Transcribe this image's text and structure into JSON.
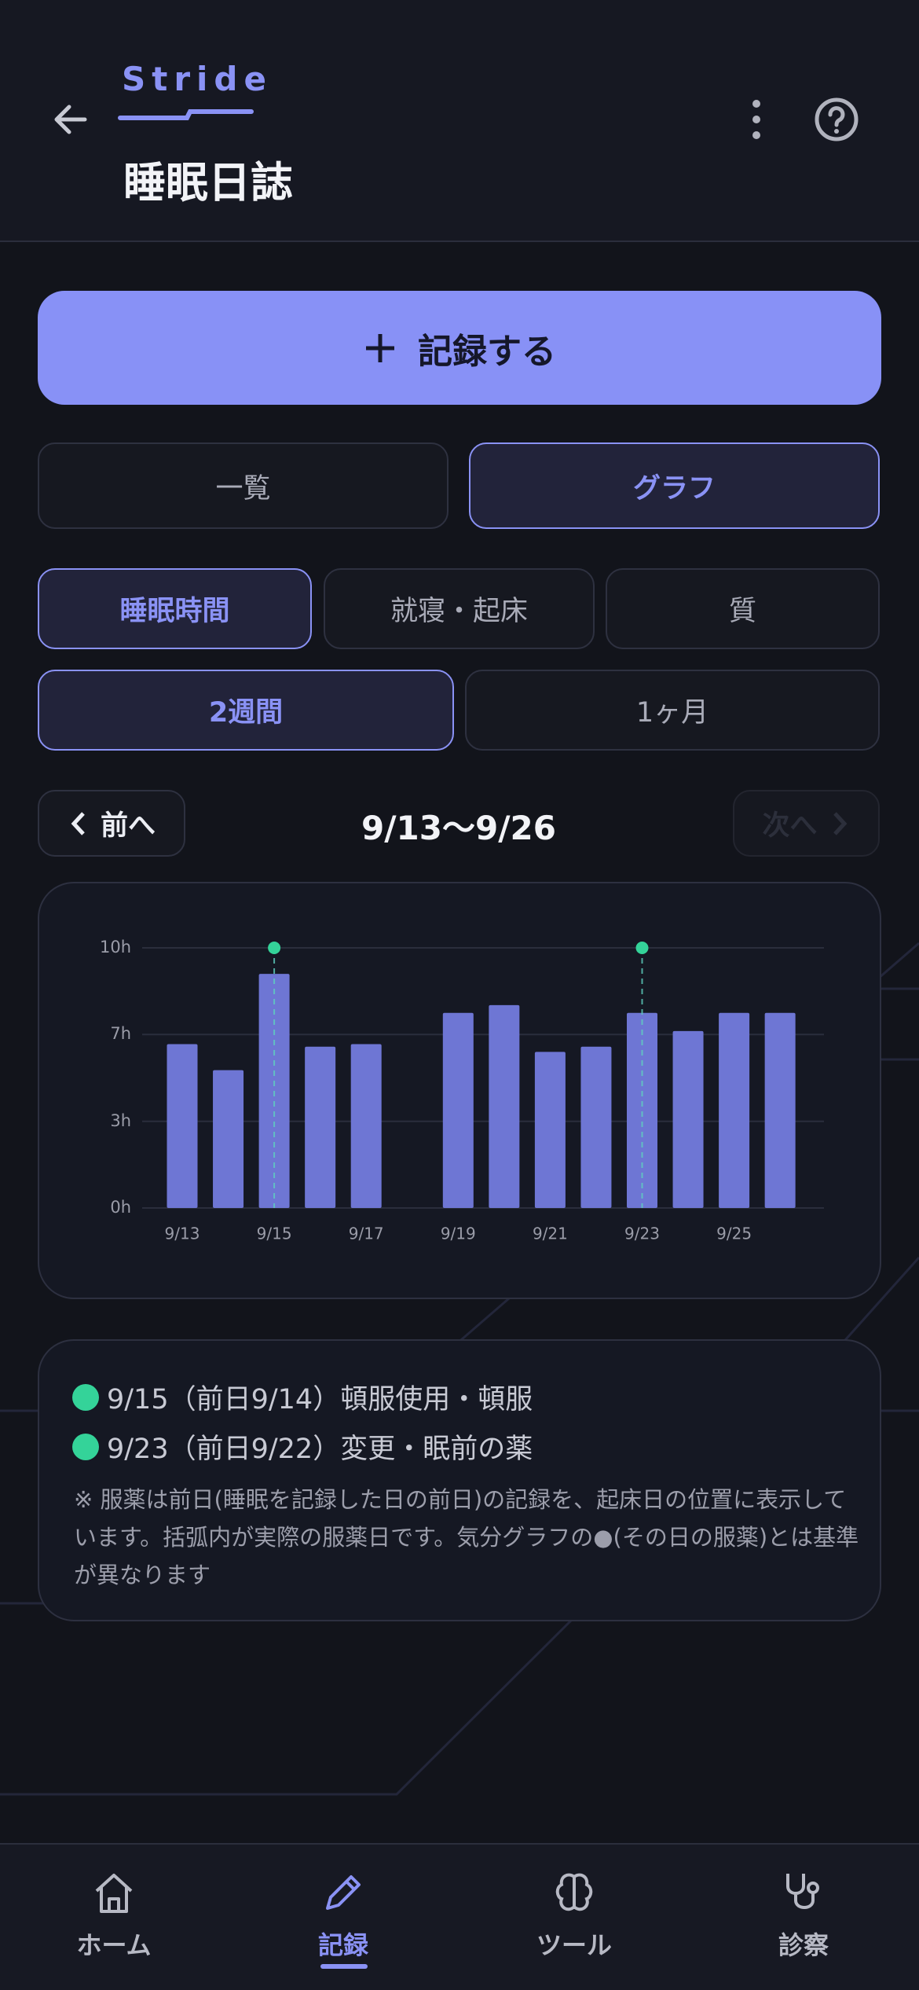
{
  "header": {
    "brand": "Stride",
    "title": "睡眠日誌"
  },
  "record_button": "記録する",
  "view_tabs": [
    "一覧",
    "グラフ"
  ],
  "metric_tabs": [
    "睡眠時間",
    "就寝・起床",
    "質"
  ],
  "range_tabs": [
    "2週間",
    "1ヶ月"
  ],
  "period": {
    "prev": "前へ",
    "label": "9/13〜9/26",
    "next": "次へ"
  },
  "chart_data": {
    "type": "bar",
    "categories": [
      "9/13",
      null,
      "9/15",
      null,
      "9/17",
      null,
      "9/19",
      null,
      "9/21",
      null,
      "9/23",
      null,
      "9/25",
      null
    ],
    "values": [
      6.3,
      5.3,
      9.0,
      6.2,
      6.3,
      null,
      7.5,
      7.8,
      6.0,
      6.2,
      7.5,
      6.8,
      7.5,
      7.5
    ],
    "color": "#6e76d4",
    "markers": {
      "color": "#34d399",
      "values": [
        null,
        null,
        10,
        null,
        null,
        null,
        null,
        null,
        null,
        null,
        10,
        null,
        null,
        null
      ]
    },
    "ylim": [
      0,
      10
    ],
    "yticks": [
      {
        "value": 0,
        "label": "0h"
      },
      {
        "value": 3.33,
        "label": "3h"
      },
      {
        "value": 6.67,
        "label": "7h"
      },
      {
        "value": 10,
        "label": "10h"
      }
    ],
    "grid": true
  },
  "notes": {
    "items": [
      "9/15（前日9/14）頓服使用・頓服",
      "9/23（前日9/22）変更・眠前の薬"
    ],
    "footnote": "※ 服薬は前日(睡眠を記録した日の前日)の記録を、起床日の位置に表示しています。括弧内が実際の服薬日です。気分グラフの●(その日の服薬)とは基準が異なります"
  },
  "nav": [
    "ホーム",
    "記録",
    "ツール",
    "診察"
  ]
}
